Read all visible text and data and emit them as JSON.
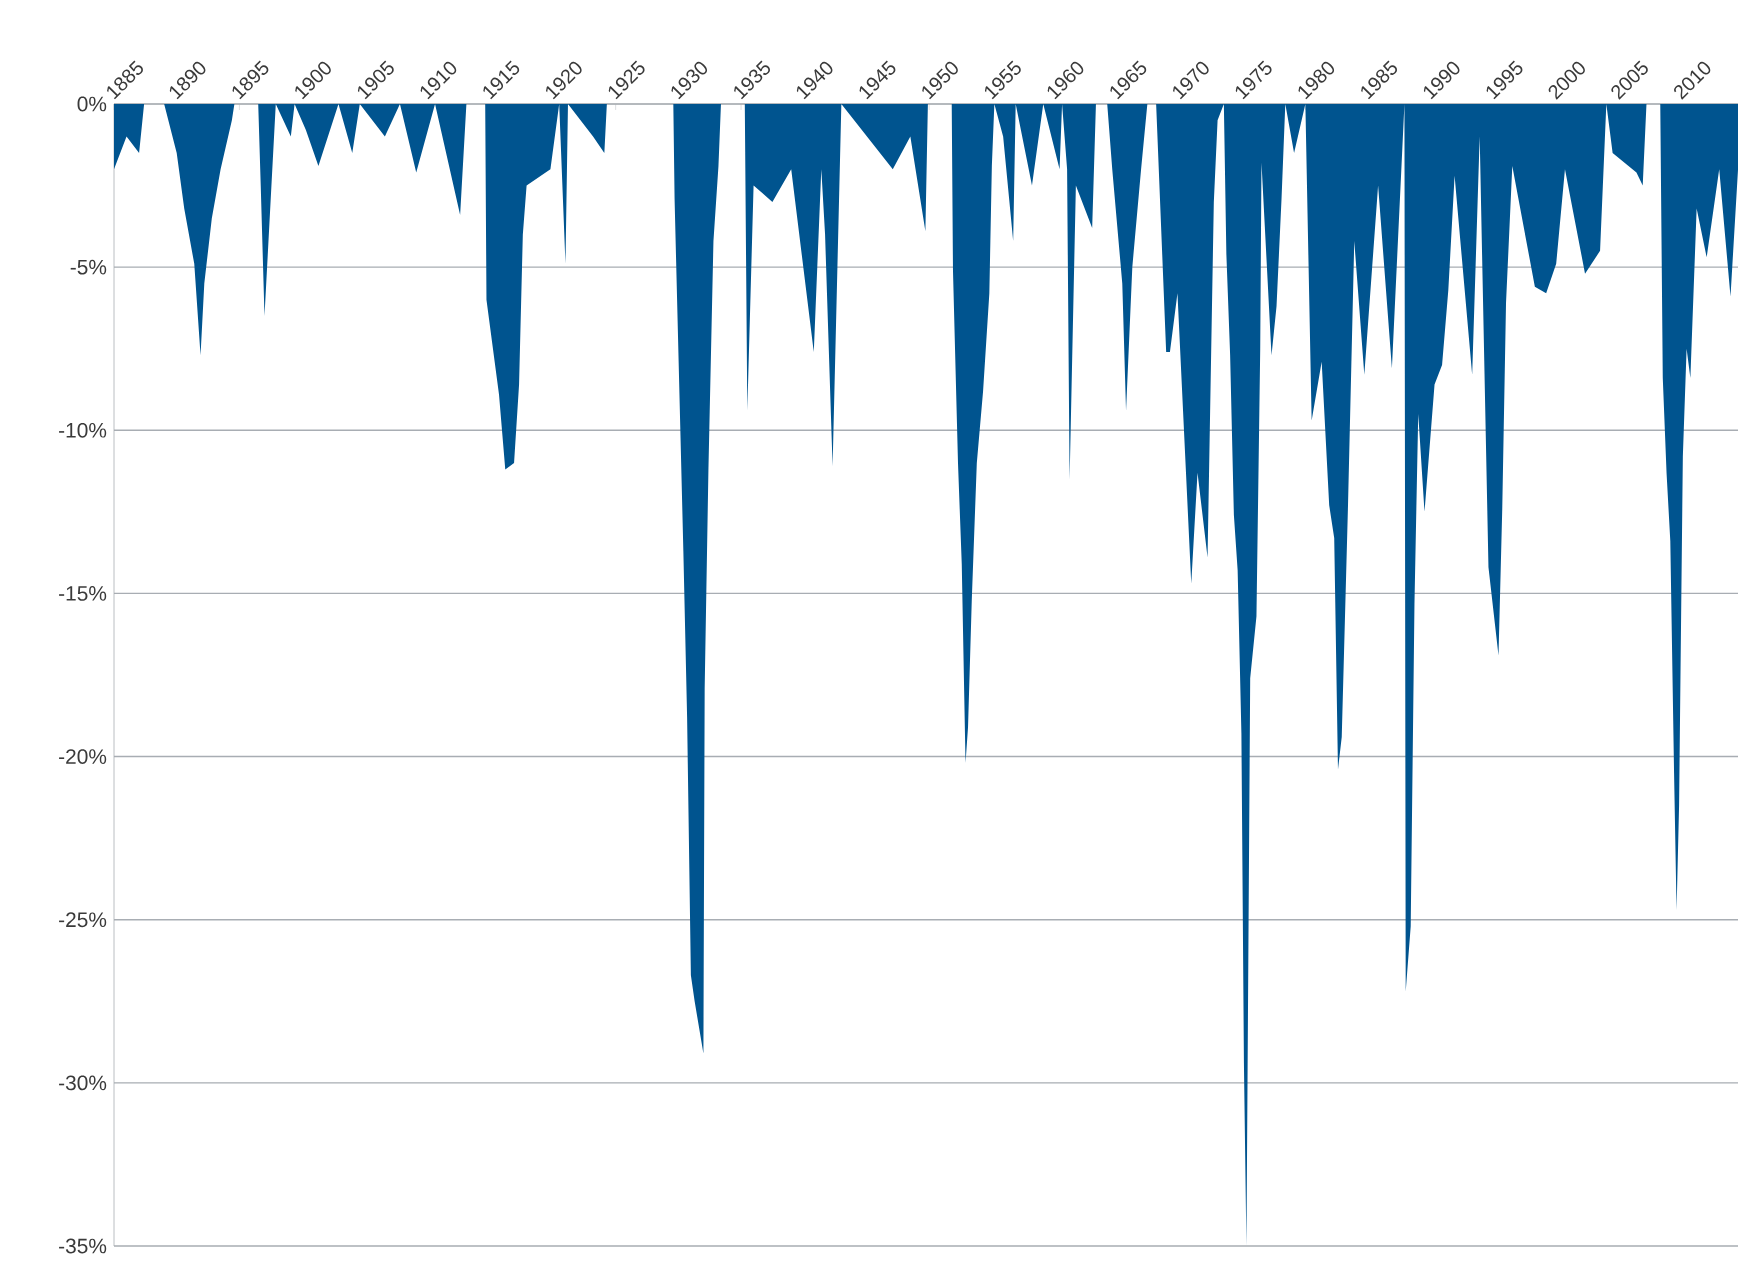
{
  "chart_data": {
    "type": "area",
    "x": [
      1885.0,
      1886.0,
      1887.0,
      1887.4,
      1889.0,
      1890.0,
      1890.6,
      1891.4,
      1891.9,
      1892.2,
      1892.8,
      1893.5,
      1894.4,
      1894.6,
      1896.5,
      1896.7,
      1897.0,
      1897.9,
      1899.1,
      1899.4,
      1900.3,
      1901.3,
      1902.9,
      1904.0,
      1904.6,
      1906.6,
      1907.8,
      1909.1,
      1910.6,
      1912.6,
      1913.1,
      1914.6,
      1914.7,
      1915.7,
      1916.2,
      1916.9,
      1917.3,
      1917.6,
      1917.9,
      1919.8,
      1920.5,
      1921.0,
      1921.2,
      1923.2,
      1924.1,
      1924.3,
      1929.6,
      1929.7,
      1930.4,
      1930.7,
      1931.0,
      1931.3,
      1932.0,
      1932.1,
      1932.4,
      1932.8,
      1933.2,
      1933.4,
      1935.3,
      1935.5,
      1936.0,
      1937.5,
      1939.0,
      1940.8,
      1941.4,
      1941.7,
      1942.3,
      1943.0,
      1947.1,
      1948.5,
      1949.7,
      1949.9,
      1951.8,
      1951.9,
      1952.3,
      1952.6,
      1952.9,
      1953.1,
      1953.4,
      1953.8,
      1954.3,
      1954.8,
      1955.0,
      1955.2,
      1955.9,
      1956.7,
      1956.9,
      1958.2,
      1959.1,
      1960.4,
      1960.6,
      1961.0,
      1961.2,
      1961.7,
      1963.0,
      1963.3,
      1964.2,
      1964.6,
      1965.4,
      1965.7,
      1966.2,
      1966.9,
      1967.4,
      1968.1,
      1968.9,
      1969.2,
      1969.8,
      1970.9,
      1971.4,
      1972.2,
      1972.7,
      1973.0,
      1973.5,
      1973.7,
      1974.0,
      1974.3,
      1974.6,
      1974.9,
      1975.1,
      1975.3,
      1975.6,
      1976.1,
      1976.4,
      1976.5,
      1977.3,
      1977.7,
      1978.1,
      1978.4,
      1979.1,
      1980.0,
      1980.5,
      1981.3,
      1981.9,
      1982.3,
      1982.6,
      1982.9,
      1983.4,
      1983.9,
      1984.7,
      1985.8,
      1986.9,
      1987.9,
      1988.0,
      1988.4,
      1988.7,
      1989.0,
      1989.5,
      1990.3,
      1990.9,
      1991.4,
      1991.9,
      1993.3,
      1993.9,
      1994.6,
      1995.4,
      1995.7,
      1996.0,
      1996.5,
      1998.3,
      1999.2,
      2000.0,
      2000.7,
      2002.3,
      2003.5,
      2004.0,
      2004.5,
      2006.4,
      2006.9,
      2007.2,
      2008.3,
      2008.5,
      2008.8,
      2009.1,
      2009.4,
      2009.6,
      2009.8,
      2010.1,
      2010.4,
      2010.7,
      2011.2,
      2012.0,
      2013.0,
      2013.9,
      2014.5
    ],
    "values": [
      -2.0,
      -1.0,
      -1.5,
      0,
      0,
      -1.5,
      -3.2,
      -4.9,
      -7.7,
      -5.5,
      -3.5,
      -2.0,
      -0.5,
      0,
      0,
      -2.5,
      -6.5,
      0,
      -1.0,
      0,
      -0.8,
      -1.9,
      0,
      -1.5,
      0,
      -1.0,
      0,
      -2.1,
      0,
      -3.4,
      0,
      0,
      -6.0,
      -8.9,
      -11.2,
      -11.0,
      -8.6,
      -4.0,
      -2.5,
      -2.0,
      0,
      -4.9,
      0,
      -1.0,
      -1.5,
      0,
      0,
      -2.9,
      -13.7,
      -18.8,
      -26.7,
      -27.5,
      -29.1,
      -17.9,
      -11.2,
      -4.2,
      -1.9,
      0,
      0,
      -9.4,
      -2.5,
      -3.0,
      -2.0,
      -7.6,
      -2.0,
      -4.0,
      -11.1,
      0,
      -2.0,
      -1.0,
      -3.9,
      0,
      0,
      -5.1,
      -11.0,
      -14.1,
      -20.2,
      -19.1,
      -15.2,
      -11.0,
      -8.8,
      -5.8,
      -1.9,
      0,
      -1.0,
      -4.2,
      0,
      -2.5,
      0,
      -2.0,
      0,
      -2.0,
      -11.5,
      -2.5,
      -3.8,
      0,
      0,
      -2.0,
      -5.5,
      -9.4,
      -5.0,
      -2.0,
      0,
      0,
      -7.6,
      -7.6,
      -5.8,
      -14.7,
      -11.3,
      -13.9,
      -3.0,
      -0.5,
      0,
      -4.6,
      -7.7,
      -12.6,
      -14.3,
      -19.3,
      -29.4,
      -35.0,
      -17.6,
      -15.7,
      -7.5,
      -1.8,
      -7.7,
      -6.2,
      -2.9,
      0,
      -1.5,
      0,
      -9.7,
      -7.9,
      -12.3,
      -13.3,
      -20.4,
      -19.4,
      -12.3,
      -4.2,
      -8.3,
      -2.5,
      -8.1,
      0,
      -27.2,
      -25.2,
      -15.3,
      -9.5,
      -12.5,
      -8.6,
      -8.0,
      -5.7,
      -2.2,
      -8.3,
      -1.0,
      -14.2,
      -16.9,
      -12.4,
      -6.1,
      -1.9,
      -5.6,
      -5.8,
      -4.9,
      -2.0,
      -5.2,
      -4.5,
      0,
      -1.5,
      -2.1,
      -2.5,
      0,
      0,
      -8.4,
      -11.3,
      -13.4,
      -20.5,
      -24.7,
      -21.5,
      -10.8,
      -7.5,
      -8.4,
      -3.2,
      -4.7,
      -2.0,
      -5.9,
      -2.0
    ],
    "color": "#00548f",
    "xlim": [
      1885,
      2014.5
    ],
    "ylim": [
      -35,
      0
    ],
    "xticks": [
      1885,
      1890,
      1895,
      1900,
      1905,
      1910,
      1915,
      1920,
      1925,
      1930,
      1935,
      1940,
      1945,
      1950,
      1955,
      1960,
      1965,
      1970,
      1975,
      1980,
      1985,
      1990,
      1995,
      2000,
      2005,
      2010
    ],
    "yticks": [
      {
        "value": 0,
        "label": "0%"
      },
      {
        "value": -5,
        "label": "-5%"
      },
      {
        "value": -10,
        "label": "-10%"
      },
      {
        "value": -15,
        "label": "-15%"
      },
      {
        "value": -20,
        "label": "-20%"
      },
      {
        "value": -25,
        "label": "-25%"
      },
      {
        "value": -30,
        "label": "-30%"
      },
      {
        "value": -35,
        "label": "-35%"
      }
    ],
    "grid": "y"
  }
}
